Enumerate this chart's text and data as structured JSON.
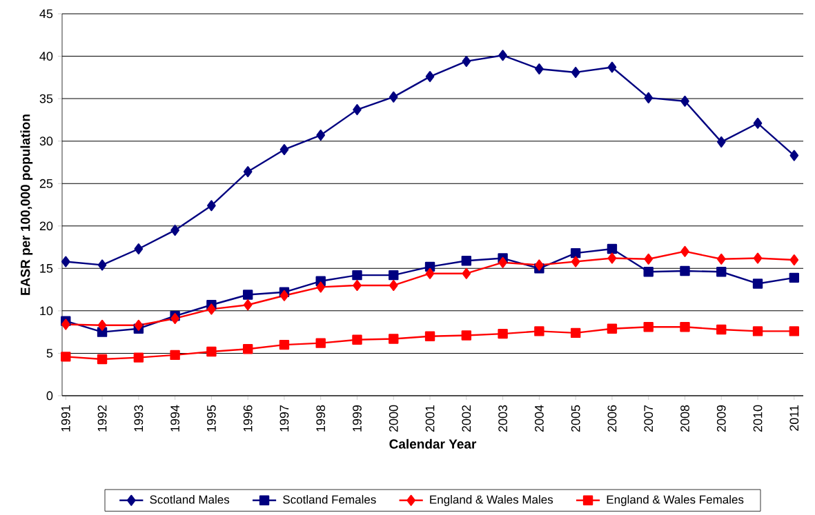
{
  "chart_data": {
    "type": "line",
    "xlabel": "Calendar Year",
    "ylabel": "EASR per 100,000 population",
    "categories": [
      "1991",
      "1992",
      "1993",
      "1994",
      "1995",
      "1996",
      "1997",
      "1998",
      "1999",
      "2000",
      "2001",
      "2002",
      "2003",
      "2004",
      "2005",
      "2006",
      "2007",
      "2008",
      "2009",
      "2010",
      "2011"
    ],
    "series": [
      {
        "name": "Scotland Males",
        "color": "#000080",
        "marker": "diamond",
        "values": [
          15.8,
          15.4,
          17.3,
          19.5,
          22.4,
          26.4,
          29.0,
          30.7,
          33.7,
          35.2,
          37.6,
          39.4,
          40.1,
          38.5,
          38.1,
          38.7,
          35.1,
          34.7,
          29.9,
          32.1,
          28.3
        ]
      },
      {
        "name": "Scotland Females",
        "color": "#000080",
        "marker": "square",
        "values": [
          8.8,
          7.5,
          7.9,
          9.4,
          10.7,
          11.9,
          12.2,
          13.5,
          14.2,
          14.2,
          15.2,
          15.9,
          16.2,
          15.0,
          16.8,
          17.3,
          14.6,
          14.7,
          14.6,
          13.2,
          13.9
        ]
      },
      {
        "name": "England & Wales Males",
        "color": "#ff0000",
        "marker": "diamond",
        "values": [
          8.4,
          8.3,
          8.3,
          9.1,
          10.2,
          10.7,
          11.8,
          12.8,
          13.0,
          13.0,
          14.4,
          14.4,
          15.7,
          15.4,
          15.8,
          16.2,
          16.1,
          17.0,
          16.1,
          16.2,
          16.0
        ]
      },
      {
        "name": "England & Wales Females",
        "color": "#ff0000",
        "marker": "square",
        "values": [
          4.6,
          4.3,
          4.5,
          4.8,
          5.2,
          5.5,
          6.0,
          6.2,
          6.6,
          6.7,
          7.0,
          7.1,
          7.3,
          7.6,
          7.4,
          7.9,
          8.1,
          8.1,
          7.8,
          7.6,
          7.6
        ]
      }
    ],
    "ylim": [
      0,
      45
    ],
    "yticks": [
      0,
      5,
      10,
      15,
      20,
      25,
      30,
      35,
      40,
      45
    ],
    "grid": "y",
    "legend": "bottom",
    "line_style": "solid"
  }
}
